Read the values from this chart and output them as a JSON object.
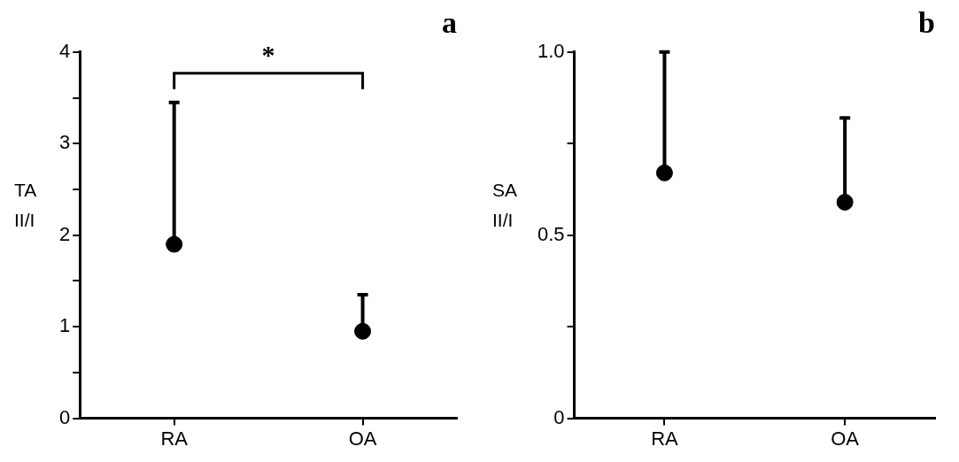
{
  "chart_data": [
    {
      "type": "scatter",
      "title": "a",
      "ylabel": "TA\nII/I",
      "categories": [
        "RA",
        "OA"
      ],
      "marker": "circle",
      "grid": false,
      "legend": false,
      "series": [
        {
          "color": "#000000",
          "values": [
            1.9,
            0.95
          ],
          "errors": [
            [
              1.9,
              3.45
            ],
            [
              0.95,
              1.35
            ]
          ]
        }
      ],
      "ylim": [
        0,
        4
      ],
      "yticks": [
        0,
        {
          "value": 0.5,
          "label": null
        },
        1,
        {
          "value": 1.5,
          "label": null
        },
        2,
        {
          "value": 2.5,
          "label": null
        },
        3,
        {
          "value": 3.5,
          "label": null
        },
        4
      ],
      "annotations": [
        "*"
      ]
    },
    {
      "type": "scatter",
      "title": "b",
      "ylabel": "SA\nII/I",
      "categories": [
        "RA",
        "OA"
      ],
      "marker": "circle",
      "grid": false,
      "legend": false,
      "series": [
        {
          "color": "#000000",
          "values": [
            0.67,
            0.59
          ],
          "errors": [
            [
              0.67,
              1.0
            ],
            [
              0.59,
              0.82
            ]
          ]
        }
      ],
      "ylim": [
        0,
        1
      ],
      "yticks": [
        0,
        {
          "value": 0.25,
          "label": null
        },
        {
          "value": 0.5,
          "label": "0.5"
        },
        {
          "value": 0.75,
          "label": null
        },
        {
          "value": 1,
          "label": "1.0"
        }
      ]
    }
  ]
}
